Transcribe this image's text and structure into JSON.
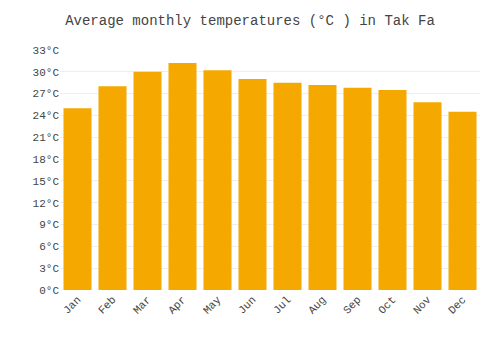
{
  "chart_data": {
    "type": "bar",
    "title": "Average monthly temperatures (°C ) in Tak Fa",
    "categories": [
      "Jan",
      "Feb",
      "Mar",
      "Apr",
      "May",
      "Jun",
      "Jul",
      "Aug",
      "Sep",
      "Oct",
      "Nov",
      "Dec"
    ],
    "values": [
      25.0,
      28.0,
      30.0,
      31.2,
      30.2,
      29.0,
      28.5,
      28.2,
      27.8,
      27.5,
      25.8,
      24.5
    ],
    "color": "#F5A800",
    "ylim": [
      0,
      33
    ],
    "yticks": [
      {
        "value": 0,
        "label": "0°C"
      },
      {
        "value": 3,
        "label": "3°C"
      },
      {
        "value": 6,
        "label": "6°C"
      },
      {
        "value": 9,
        "label": "9°C"
      },
      {
        "value": 12,
        "label": "12°C"
      },
      {
        "value": 15,
        "label": "15°C"
      },
      {
        "value": 18,
        "label": "18°C"
      },
      {
        "value": 21,
        "label": "21°C"
      },
      {
        "value": 24,
        "label": "24°C"
      },
      {
        "value": 27,
        "label": "27°C"
      },
      {
        "value": 30,
        "label": "30°C"
      },
      {
        "value": 33,
        "label": "33°C"
      }
    ],
    "grid": true
  }
}
